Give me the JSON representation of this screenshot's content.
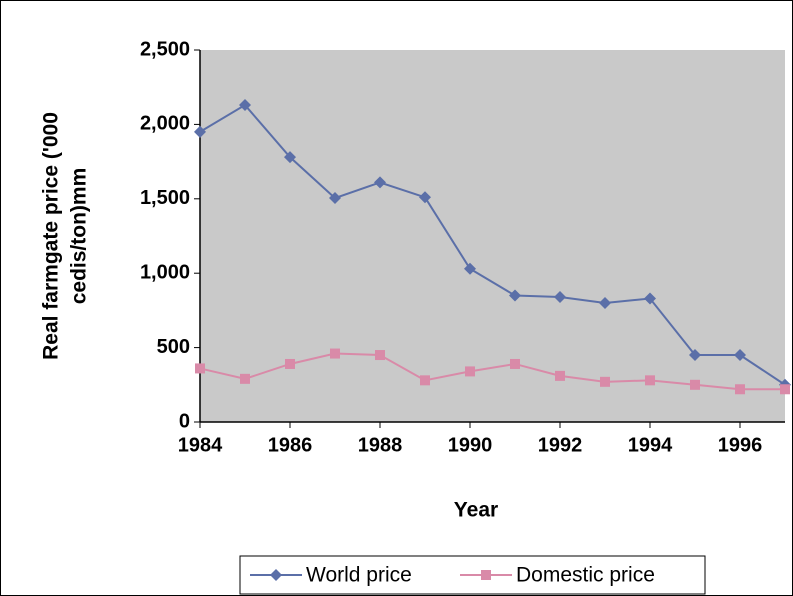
{
  "chart_data": {
    "type": "line",
    "x_label": "Year",
    "y_label": [
      "Real farmgate price ('000",
      "cedis/ton)mm"
    ],
    "x": [
      1984,
      1985,
      1986,
      1987,
      1988,
      1989,
      1990,
      1991,
      1992,
      1993,
      1994,
      1995,
      1996,
      1997
    ],
    "series": [
      {
        "name": "World price",
        "color": "#5b6fa8",
        "marker": "diamond",
        "values": [
          1950,
          2130,
          1780,
          1505,
          1610,
          1510,
          1030,
          850,
          840,
          800,
          830,
          450,
          450,
          250
        ]
      },
      {
        "name": "Domestic price",
        "color": "#d98aa8",
        "marker": "square",
        "values": [
          360,
          290,
          390,
          460,
          450,
          280,
          340,
          390,
          310,
          270,
          280,
          250,
          220,
          220
        ]
      }
    ],
    "xlim": [
      1984,
      1997
    ],
    "xticks": [
      1984,
      1986,
      1988,
      1990,
      1992,
      1994,
      1996
    ],
    "ylim": [
      0,
      2500
    ],
    "yticks": [
      0,
      500,
      {
        "value": 1000,
        "label": "1,000"
      },
      {
        "value": 1500,
        "label": "1,500"
      },
      {
        "value": 2000,
        "label": "2,000"
      },
      {
        "value": 2500,
        "label": "2,500"
      }
    ],
    "grid": false,
    "legend": "bottom"
  }
}
